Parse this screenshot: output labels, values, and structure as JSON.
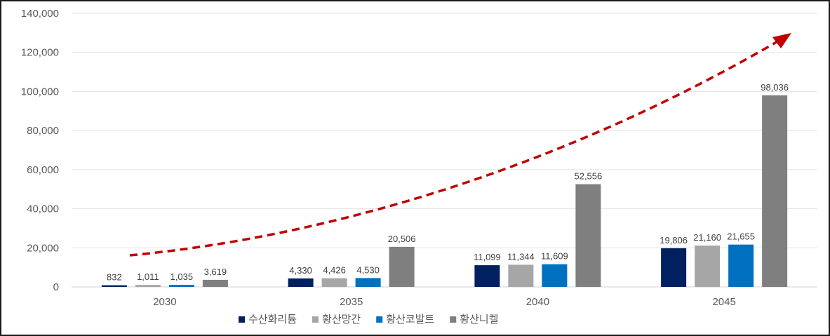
{
  "chart_data": {
    "type": "bar",
    "categories": [
      "2030",
      "2035",
      "2040",
      "2045"
    ],
    "series": [
      {
        "name": "수산화리튬",
        "values": [
          832,
          4330,
          11099,
          19806
        ],
        "value_labels": [
          "832",
          "4,330",
          "11,099",
          "19,806"
        ],
        "color": "#002060"
      },
      {
        "name": "황산망간",
        "values": [
          1011,
          4426,
          11344,
          21160
        ],
        "value_labels": [
          "1,011",
          "4,426",
          "11,344",
          "21,160"
        ],
        "color": "#a6a6a6"
      },
      {
        "name": "황산코발트",
        "values": [
          1035,
          4530,
          11609,
          21655
        ],
        "value_labels": [
          "1,035",
          "4,530",
          "11,609",
          "21,655"
        ],
        "color": "#0070c0"
      },
      {
        "name": "황산니켈",
        "values": [
          3619,
          20506,
          52556,
          98036
        ],
        "value_labels": [
          "3,619",
          "20,506",
          "52,556",
          "98,036"
        ],
        "color": "#7f7f7f"
      }
    ],
    "ylim": [
      0,
      140000
    ],
    "yticks": [
      0,
      20000,
      40000,
      60000,
      80000,
      100000,
      120000,
      140000
    ],
    "ytick_labels": [
      "0",
      "20,000",
      "40,000",
      "60,000",
      "80,000",
      "100,000",
      "120,000",
      "140,000"
    ],
    "grid": true,
    "legend_position": "bottom",
    "trend_arrow": {
      "color": "#c00000",
      "style": "dashed",
      "direction": "rising"
    }
  }
}
